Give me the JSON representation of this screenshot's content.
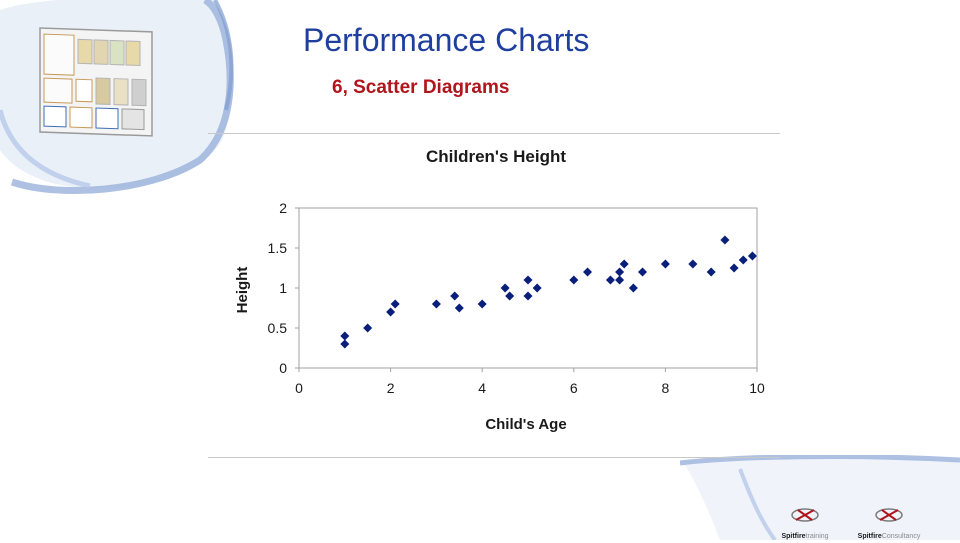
{
  "slide": {
    "title": "Performance Charts",
    "subtitle": "6, Scatter Diagrams"
  },
  "colors": {
    "title": "#1f3f9f",
    "subtitle": "#b0151c",
    "marker": "#0a1f7a",
    "decor": "#8ea8d6"
  },
  "logos": [
    {
      "brand": "Spitfire",
      "suffix": "training"
    },
    {
      "brand": "Spitfire",
      "suffix": "Consultancy"
    }
  ],
  "chart_data": {
    "type": "scatter",
    "title": "Children's Height",
    "xlabel": "Child's Age",
    "ylabel": "Height",
    "xlim": [
      0,
      10
    ],
    "ylim": [
      0,
      2
    ],
    "xticks": [
      0,
      2,
      4,
      6,
      8,
      10
    ],
    "yticks": [
      0,
      0.5,
      1,
      1.5,
      2
    ],
    "grid": false,
    "legend": "none",
    "marker": "diamond",
    "points": [
      {
        "x": 1.0,
        "y": 0.4
      },
      {
        "x": 1.0,
        "y": 0.3
      },
      {
        "x": 1.5,
        "y": 0.5
      },
      {
        "x": 2.0,
        "y": 0.7
      },
      {
        "x": 2.1,
        "y": 0.8
      },
      {
        "x": 3.0,
        "y": 0.8
      },
      {
        "x": 3.4,
        "y": 0.9
      },
      {
        "x": 3.5,
        "y": 0.75
      },
      {
        "x": 4.0,
        "y": 0.8
      },
      {
        "x": 4.5,
        "y": 1.0
      },
      {
        "x": 4.6,
        "y": 0.9
      },
      {
        "x": 5.0,
        "y": 1.1
      },
      {
        "x": 5.0,
        "y": 0.9
      },
      {
        "x": 5.2,
        "y": 1.0
      },
      {
        "x": 6.0,
        "y": 1.1
      },
      {
        "x": 6.3,
        "y": 1.2
      },
      {
        "x": 6.8,
        "y": 1.1
      },
      {
        "x": 7.0,
        "y": 1.1
      },
      {
        "x": 7.0,
        "y": 1.2
      },
      {
        "x": 7.1,
        "y": 1.3
      },
      {
        "x": 7.3,
        "y": 1.0
      },
      {
        "x": 7.5,
        "y": 1.2
      },
      {
        "x": 8.0,
        "y": 1.3
      },
      {
        "x": 8.6,
        "y": 1.3
      },
      {
        "x": 9.0,
        "y": 1.2
      },
      {
        "x": 9.3,
        "y": 1.6
      },
      {
        "x": 9.5,
        "y": 1.25
      },
      {
        "x": 9.7,
        "y": 1.35
      },
      {
        "x": 9.9,
        "y": 1.4
      }
    ]
  }
}
